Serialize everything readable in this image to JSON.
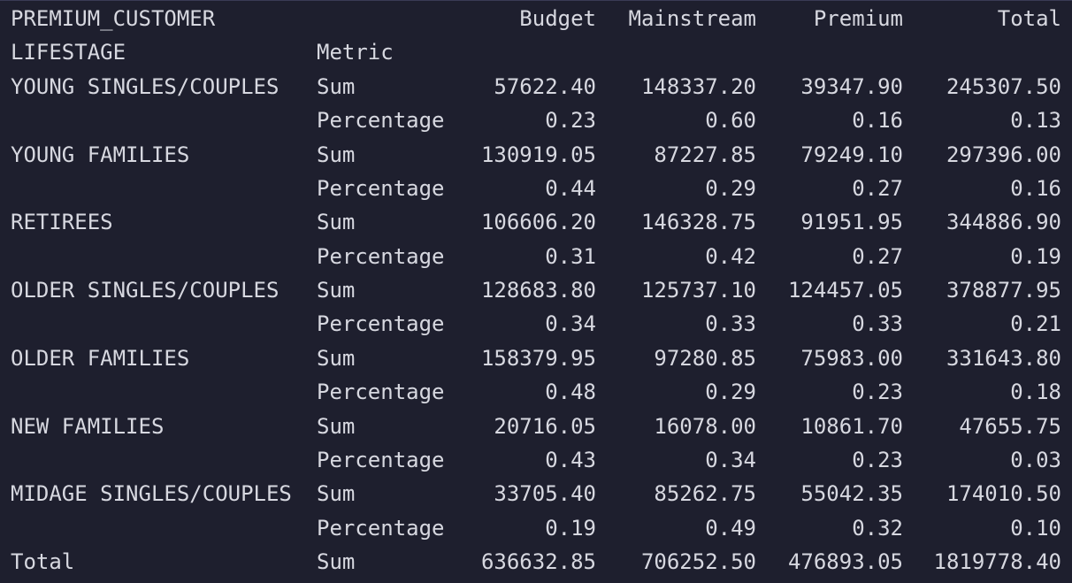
{
  "header": {
    "column_index_name": "PREMIUM_CUSTOMER",
    "columns": [
      "Budget",
      "Mainstream",
      "Premium",
      "Total"
    ],
    "row_index_name": "LIFESTAGE",
    "metric_name": "Metric"
  },
  "rows": [
    {
      "lifestage": "YOUNG SINGLES/COUPLES",
      "metric": "Sum",
      "values": [
        "57622.40",
        "148337.20",
        "39347.90",
        "245307.50"
      ]
    },
    {
      "lifestage": "",
      "metric": "Percentage",
      "values": [
        "0.23",
        "0.60",
        "0.16",
        "0.13"
      ]
    },
    {
      "lifestage": "YOUNG FAMILIES",
      "metric": "Sum",
      "values": [
        "130919.05",
        "87227.85",
        "79249.10",
        "297396.00"
      ]
    },
    {
      "lifestage": "",
      "metric": "Percentage",
      "values": [
        "0.44",
        "0.29",
        "0.27",
        "0.16"
      ]
    },
    {
      "lifestage": "RETIREES",
      "metric": "Sum",
      "values": [
        "106606.20",
        "146328.75",
        "91951.95",
        "344886.90"
      ]
    },
    {
      "lifestage": "",
      "metric": "Percentage",
      "values": [
        "0.31",
        "0.42",
        "0.27",
        "0.19"
      ]
    },
    {
      "lifestage": "OLDER SINGLES/COUPLES",
      "metric": "Sum",
      "values": [
        "128683.80",
        "125737.10",
        "124457.05",
        "378877.95"
      ]
    },
    {
      "lifestage": "",
      "metric": "Percentage",
      "values": [
        "0.34",
        "0.33",
        "0.33",
        "0.21"
      ]
    },
    {
      "lifestage": "OLDER FAMILIES",
      "metric": "Sum",
      "values": [
        "158379.95",
        "97280.85",
        "75983.00",
        "331643.80"
      ]
    },
    {
      "lifestage": "",
      "metric": "Percentage",
      "values": [
        "0.48",
        "0.29",
        "0.23",
        "0.18"
      ]
    },
    {
      "lifestage": "NEW FAMILIES",
      "metric": "Sum",
      "values": [
        "20716.05",
        "16078.00",
        "10861.70",
        "47655.75"
      ]
    },
    {
      "lifestage": "",
      "metric": "Percentage",
      "values": [
        "0.43",
        "0.34",
        "0.23",
        "0.03"
      ]
    },
    {
      "lifestage": "MIDAGE SINGLES/COUPLES",
      "metric": "Sum",
      "values": [
        "33705.40",
        "85262.75",
        "55042.35",
        "174010.50"
      ]
    },
    {
      "lifestage": "",
      "metric": "Percentage",
      "values": [
        "0.19",
        "0.49",
        "0.32",
        "0.10"
      ]
    },
    {
      "lifestage": "Total",
      "metric": "Sum",
      "values": [
        "636632.85",
        "706252.50",
        "476893.05",
        "1819778.40"
      ]
    }
  ],
  "theme": {
    "background": "#1e1f2e",
    "text": "#d7d8e0"
  }
}
